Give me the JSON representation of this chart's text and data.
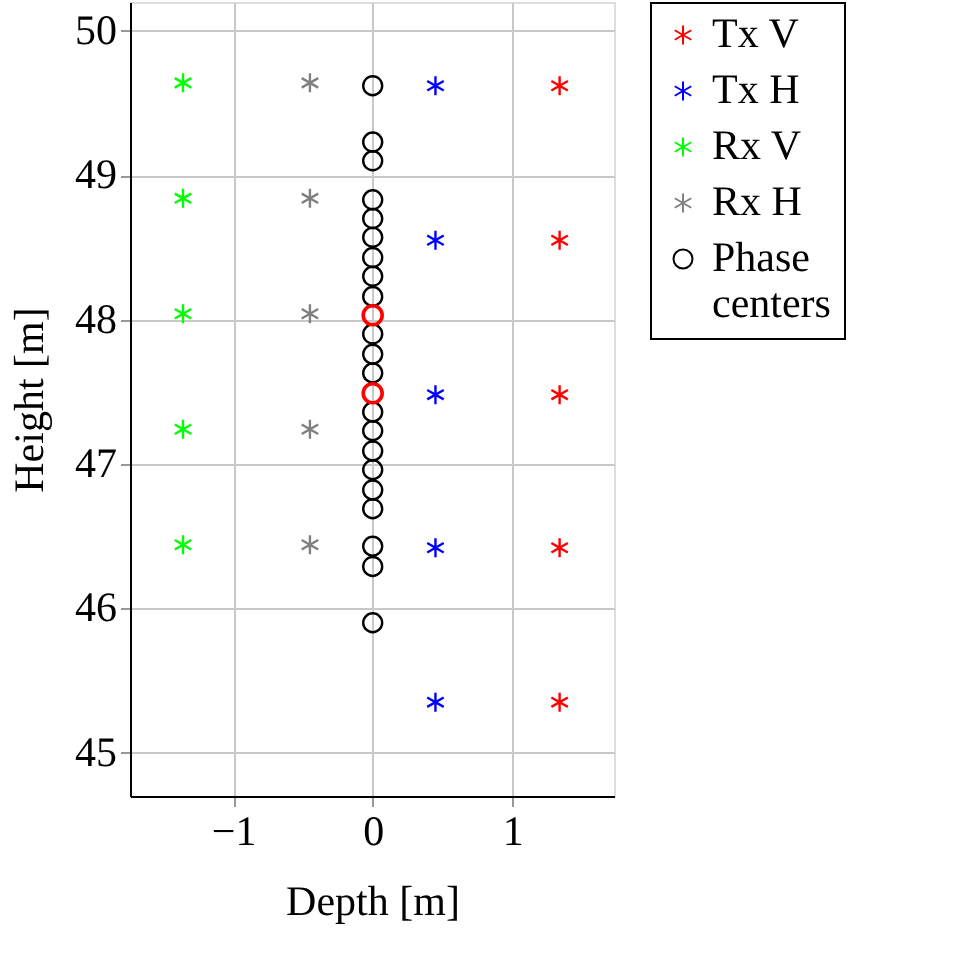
{
  "chart_data": {
    "type": "scatter",
    "xlabel": "Depth [m]",
    "ylabel": "Height [m]",
    "xlim": [
      -1.74,
      1.73
    ],
    "ylim": [
      44.7,
      50.2
    ],
    "xticks": [
      -1,
      0,
      1
    ],
    "yticks": [
      45,
      46,
      47,
      48,
      49,
      50
    ],
    "grid": true,
    "legend": "right",
    "series": [
      {
        "name": "Tx V",
        "color": "#ff0000",
        "marker": "cross",
        "x": [
          1.34,
          1.34,
          1.34,
          1.34,
          1.34
        ],
        "values": [
          49.62,
          48.55,
          47.48,
          46.42,
          45.35
        ]
      },
      {
        "name": "Tx H",
        "color": "#0000ff",
        "marker": "cross",
        "x": [
          0.45,
          0.45,
          0.45,
          0.45,
          0.45
        ],
        "values": [
          49.62,
          48.55,
          47.48,
          46.42,
          45.35
        ]
      },
      {
        "name": "Rx V",
        "color": "#00ff00",
        "marker": "cross",
        "x": [
          -1.36,
          -1.36,
          -1.36,
          -1.36,
          -1.36
        ],
        "values": [
          49.64,
          48.84,
          48.04,
          47.24,
          46.44
        ]
      },
      {
        "name": "Rx H",
        "color": "#808080",
        "marker": "cross",
        "x": [
          -0.45,
          -0.45,
          -0.45,
          -0.45,
          -0.45
        ],
        "values": [
          49.64,
          48.84,
          48.04,
          47.24,
          46.44
        ]
      },
      {
        "name": "Phase centers",
        "color": "#000000",
        "marker": "circle",
        "x": [
          0,
          0,
          0,
          0,
          0,
          0,
          0,
          0,
          0,
          0,
          0,
          0,
          0,
          0,
          0,
          0,
          0,
          0,
          0,
          0,
          0
        ],
        "values": [
          49.62,
          49.23,
          49.1,
          48.83,
          48.7,
          48.57,
          48.43,
          48.3,
          48.16,
          47.9,
          47.76,
          47.63,
          47.36,
          47.23,
          47.09,
          46.96,
          46.82,
          46.69,
          46.43,
          46.29,
          45.9
        ]
      },
      {
        "color": "#ff0000",
        "marker": "circle",
        "x": [
          0,
          0
        ],
        "values": [
          48.03,
          47.49
        ]
      }
    ]
  }
}
